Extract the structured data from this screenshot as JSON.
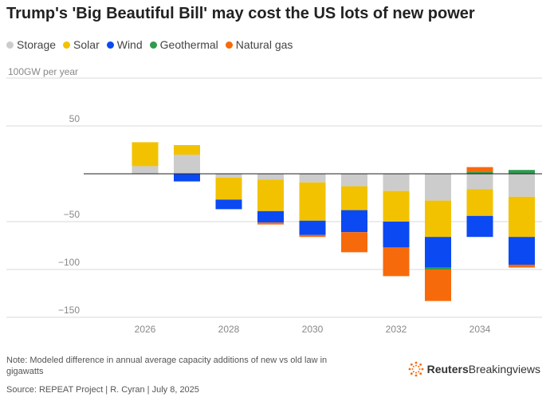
{
  "header": {
    "title": "Trump's 'Big Beautiful Bill' may cost the US lots of new power"
  },
  "legend": [
    {
      "label": "Storage",
      "color": "#cccccc"
    },
    {
      "label": "Solar",
      "color": "#f2c200"
    },
    {
      "label": "Wind",
      "color": "#0b49f2"
    },
    {
      "label": "Geothermal",
      "color": "#2e9b4f"
    },
    {
      "label": "Natural gas",
      "color": "#f76a0c"
    }
  ],
  "chart_data": {
    "type": "bar",
    "stacked": true,
    "ylabel": "100GW per year",
    "ylim": [
      -150,
      100
    ],
    "yticks": [
      50,
      -50,
      -100,
      -150
    ],
    "ytick_labels": [
      "50",
      "−50",
      "−100",
      "−150"
    ],
    "x": [
      2026,
      2027,
      2028,
      2029,
      2030,
      2031,
      2032,
      2033,
      2034,
      2035
    ],
    "xtick_labels": [
      "2026",
      "2028",
      "2030",
      "2032",
      "2034"
    ],
    "xtick_years": [
      2026,
      2028,
      2030,
      2032,
      2034
    ],
    "series": [
      {
        "name": "Storage",
        "color": "#cccccc",
        "values": [
          8,
          20,
          -4,
          -6,
          -9,
          -13,
          -18,
          -28,
          -16,
          -24
        ]
      },
      {
        "name": "Solar",
        "color": "#f2c200",
        "values": [
          25,
          10,
          -23,
          -33,
          -40,
          -25,
          -32,
          -38,
          -28,
          -42
        ]
      },
      {
        "name": "Wind",
        "color": "#0b49f2",
        "values": [
          0,
          -8,
          -10,
          -12,
          -15,
          -23,
          -27,
          -32,
          -22,
          -29
        ]
      },
      {
        "name": "Geothermal",
        "color": "#2e9b4f",
        "values": [
          0,
          0,
          0,
          0,
          0,
          0,
          0,
          -2,
          2,
          4
        ]
      },
      {
        "name": "Natural gas",
        "color": "#f76a0c",
        "values": [
          0,
          0,
          0,
          -2,
          -2,
          -21,
          -30,
          -33,
          5,
          -3
        ]
      }
    ]
  },
  "footer": {
    "note": "Note: Modeled difference in annual average capacity additions of new vs old law in gigawatts",
    "source": "Source: REPEAT Project | R. Cyran | July 8, 2025",
    "brand_name": "Reuters",
    "brand_sub": "Breakingviews"
  }
}
